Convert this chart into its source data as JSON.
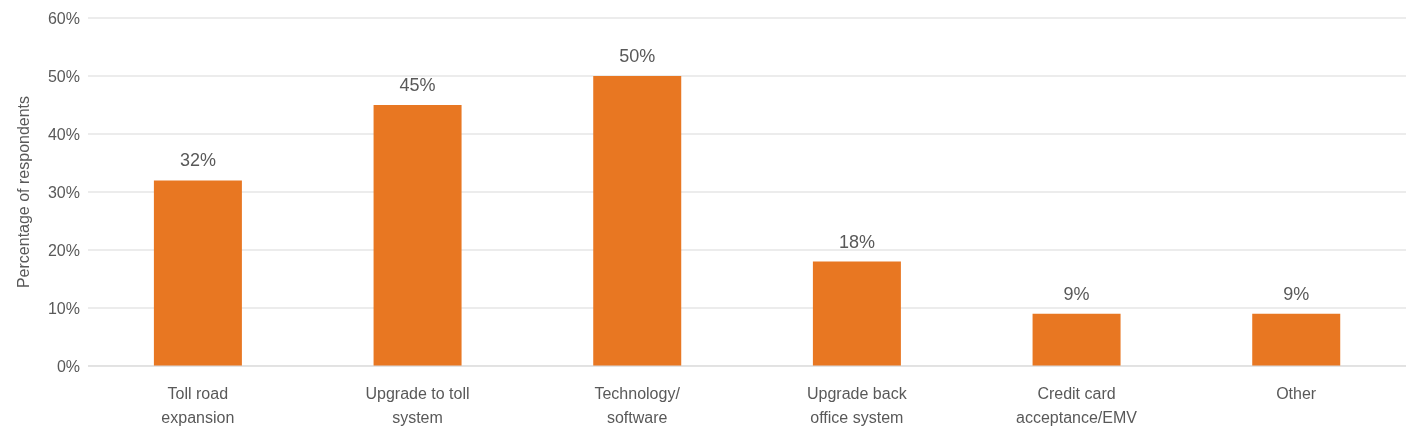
{
  "chart_data": {
    "type": "bar",
    "ylabel": "Percentage of respondents",
    "categories": [
      "Toll road expansion",
      "Upgrade to toll system",
      "Technology/ software",
      "Upgrade back office system",
      "Credit card acceptance/EMV",
      "Other"
    ],
    "values": [
      32,
      45,
      50,
      18,
      9,
      9
    ],
    "value_labels": [
      "32%",
      "45%",
      "50%",
      "18%",
      "9%",
      "9%"
    ],
    "color": "#e87722",
    "ylim": [
      0,
      60
    ],
    "yticks": [
      {
        "value": 0,
        "label": "0%"
      },
      {
        "value": 10,
        "label": "10%"
      },
      {
        "value": 20,
        "label": "20%"
      },
      {
        "value": 30,
        "label": "30%"
      },
      {
        "value": 40,
        "label": "40%"
      },
      {
        "value": 50,
        "label": "50%"
      },
      {
        "value": 60,
        "label": "60%"
      }
    ],
    "grid": "y"
  }
}
